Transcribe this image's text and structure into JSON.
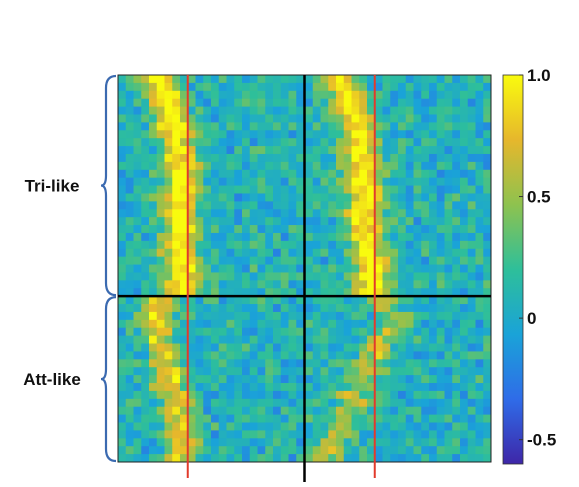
{
  "chart_data": {
    "type": "heatmap",
    "title": "",
    "xlabel": "",
    "ylabel": "",
    "row_groups": [
      {
        "label": "Tri-like",
        "rows": 28
      },
      {
        "label": "Att-like",
        "rows": 21
      }
    ],
    "panels": 2,
    "columns_per_panel": 24,
    "colormap": [
      "#3e26a8",
      "#2f6ce8",
      "#1aa3d8",
      "#2ebf9a",
      "#8ec24f",
      "#e6b72c",
      "#f9fb0e"
    ],
    "colorbar": {
      "range": [
        -0.6,
        1.0
      ],
      "ticks": [
        {
          "value": 1.0,
          "label": "1.0"
        },
        {
          "value": 0.5,
          "label": "0.5"
        },
        {
          "value": 0,
          "label": "0"
        },
        {
          "value": -0.5,
          "label": "-0.5"
        }
      ]
    },
    "background_level": 0.1,
    "bands": [
      {
        "panel": 0,
        "group": 0,
        "center_cols": [
          4.5,
          5.0,
          5.5,
          5.8,
          6.0,
          6.3,
          6.5,
          6.8,
          7.0,
          7.3,
          7.2,
          7.5,
          7.6,
          7.8,
          7.6,
          7.4,
          7.5,
          7.3,
          7.6,
          7.8,
          7.5,
          7.2,
          7.4,
          7.6,
          7.8,
          8.0,
          7.8,
          7.6
        ],
        "peak": 0.95
      },
      {
        "panel": 1,
        "group": 0,
        "center_cols": [
          4.0,
          4.5,
          5.0,
          5.5,
          5.8,
          6.0,
          6.3,
          6.6,
          6.8,
          6.4,
          6.6,
          6.9,
          7.0,
          6.8,
          7.2,
          7.4,
          7.3,
          7.0,
          7.2,
          7.6,
          7.4,
          7.8,
          7.6,
          7.9,
          8.2,
          8.0,
          8.3,
          8.1
        ],
        "peak": 0.92
      },
      {
        "panel": 0,
        "group": 1,
        "center_cols": [
          4.5,
          4.8,
          4.0,
          4.3,
          5.0,
          4.5,
          5.5,
          6.0,
          5.0,
          6.0,
          6.5,
          5.5,
          6.8,
          7.0,
          6.2,
          7.5,
          8.0,
          7.0,
          7.8,
          8.0,
          7.5
        ],
        "peak": 0.72
      },
      {
        "panel": 1,
        "group": 1,
        "center_cols": [
          10.0,
          9.0,
          12.0,
          11.0,
          10.5,
          9.5,
          8.5,
          9.0,
          7.5,
          8.0,
          6.5,
          7.0,
          5.5,
          6.0,
          5.0,
          4.5,
          4.0,
          3.5,
          3.0,
          2.5,
          2.0
        ],
        "peak": 0.55
      }
    ],
    "reference_lines": {
      "group_divider_after_row": 28,
      "panel_divider_after_col": 24,
      "event_marker_cols": [
        9,
        9
      ]
    }
  }
}
